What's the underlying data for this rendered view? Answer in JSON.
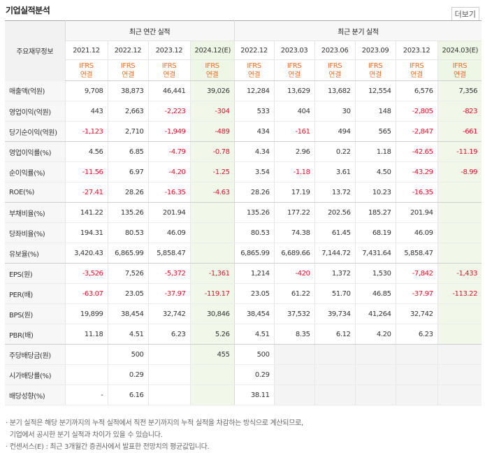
{
  "header": {
    "title": "기업실적분석",
    "more_label": "더보기"
  },
  "table": {
    "label_header": "주요재무정보",
    "annual_group": "최근 연간 실적",
    "quarter_group": "최근 분기 실적",
    "annual_periods": [
      "2021.12",
      "2022.12",
      "2023.12",
      "2024.12(E)"
    ],
    "quarter_periods": [
      "2022.12",
      "2023.03",
      "2023.06",
      "2023.09",
      "2023.12",
      "2024.03(E)"
    ],
    "ifrs_top": "IFRS",
    "ifrs_bottom": "연결",
    "rows": [
      {
        "label": "매출액(억원)",
        "annual": [
          "9,708",
          "38,873",
          "46,441",
          "39,026"
        ],
        "quarter": [
          "12,284",
          "13,629",
          "13,682",
          "12,554",
          "6,576",
          "7,356"
        ]
      },
      {
        "label": "영업이익(억원)",
        "annual": [
          "443",
          "2,663",
          "-2,223",
          "-304"
        ],
        "quarter": [
          "533",
          "404",
          "30",
          "148",
          "-2,805",
          "-823"
        ]
      },
      {
        "label": "당기순이익(억원)",
        "annual": [
          "-1,123",
          "2,710",
          "-1,949",
          "-489"
        ],
        "quarter": [
          "434",
          "-161",
          "494",
          "565",
          "-2,847",
          "-661"
        ]
      },
      {
        "label": "영업이익률(%)",
        "annual": [
          "4.56",
          "6.85",
          "-4.79",
          "-0.78"
        ],
        "quarter": [
          "4.34",
          "2.96",
          "0.22",
          "1.18",
          "-42.65",
          "-11.19"
        ]
      },
      {
        "label": "순이익률(%)",
        "annual": [
          "-11.56",
          "6.97",
          "-4.20",
          "-1.25"
        ],
        "quarter": [
          "3.54",
          "-1.18",
          "3.61",
          "4.50",
          "-43.29",
          "-8.99"
        ]
      },
      {
        "label": "ROE(%)",
        "annual": [
          "-27.41",
          "28.26",
          "-16.35",
          "-4.63"
        ],
        "quarter": [
          "28.26",
          "17.19",
          "13.72",
          "10.23",
          "-16.35",
          ""
        ]
      },
      {
        "label": "부채비율(%)",
        "annual": [
          "141.22",
          "135.26",
          "201.94",
          ""
        ],
        "quarter": [
          "135.26",
          "177.22",
          "202.56",
          "185.27",
          "201.94",
          ""
        ]
      },
      {
        "label": "당좌비율(%)",
        "annual": [
          "194.31",
          "80.53",
          "46.09",
          ""
        ],
        "quarter": [
          "80.53",
          "74.38",
          "61.45",
          "68.19",
          "46.09",
          ""
        ]
      },
      {
        "label": "유보율(%)",
        "annual": [
          "3,420.43",
          "6,865.99",
          "5,858.47",
          ""
        ],
        "quarter": [
          "6,865.99",
          "6,689.66",
          "7,144.72",
          "7,431.64",
          "5,858.47",
          ""
        ]
      },
      {
        "label": "EPS(원)",
        "annual": [
          "-3,526",
          "7,526",
          "-5,372",
          "-1,361"
        ],
        "quarter": [
          "1,214",
          "-420",
          "1,372",
          "1,530",
          "-7,842",
          "-1,433"
        ]
      },
      {
        "label": "PER(배)",
        "annual": [
          "-63.07",
          "23.05",
          "-37.97",
          "-119.17"
        ],
        "quarter": [
          "23.05",
          "61.22",
          "51.70",
          "46.85",
          "-37.97",
          "-113.22"
        ]
      },
      {
        "label": "BPS(원)",
        "annual": [
          "19,899",
          "38,454",
          "32,742",
          "30,846"
        ],
        "quarter": [
          "38,454",
          "37,532",
          "39,734",
          "41,264",
          "32,742",
          ""
        ]
      },
      {
        "label": "PBR(배)",
        "annual": [
          "11.18",
          "4.51",
          "6.23",
          "5.26"
        ],
        "quarter": [
          "4.51",
          "8.35",
          "6.12",
          "4.20",
          "6.23",
          ""
        ]
      },
      {
        "label": "주당배당금(원)",
        "annual": [
          "",
          "500",
          "",
          "455"
        ],
        "quarter": [
          "500",
          "",
          "",
          "",
          "",
          ""
        ]
      },
      {
        "label": "시가배당률(%)",
        "annual": [
          "",
          "0.29",
          "",
          ""
        ],
        "quarter": [
          "0.29",
          "",
          "",
          "",
          "",
          ""
        ]
      },
      {
        "label": "배당성향(%)",
        "annual": [
          "-",
          "6.16",
          "",
          ""
        ],
        "quarter": [
          "38.11",
          "",
          "",
          "",
          "",
          ""
        ]
      }
    ]
  },
  "notes": [
    "· 분기 실적은 해당 분기까지의 누적 실적에서 직전 분기까지의 누적 실적을 차감하는 방식으로 계산되므로,",
    "  기업에서 공시한 분기 실적과 차이가 있을 수 있습니다.",
    "· 컨센서스(E) : 최근 3개월간 증권사에서 발표한 전망치의 평균값입니다."
  ]
}
